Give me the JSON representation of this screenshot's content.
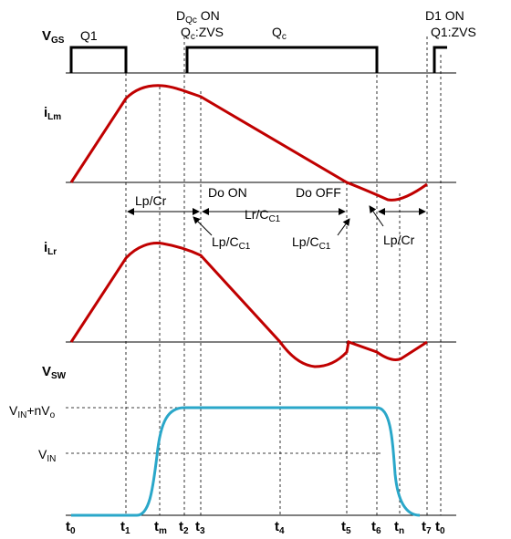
{
  "top": {
    "q1": "Q1",
    "dqc_on": {
      "main": "D",
      "sub": "Qc",
      "rest": " ON"
    },
    "qc_zvs": {
      "main": "Q",
      "sub": "c",
      "rest": ":ZVS"
    },
    "qc": {
      "main": "Q",
      "sub": "c"
    },
    "d1_on": "D1 ON",
    "q1_zvs": "Q1:ZVS"
  },
  "rows": [
    {
      "main": "V",
      "sub": "GS"
    },
    {
      "main": "i",
      "sub": "Lm"
    },
    {
      "main": "i",
      "sub": "Lr"
    },
    {
      "main": "V",
      "sub": "SW"
    }
  ],
  "levels": [
    {
      "main": "V",
      "sub": "IN",
      "rest": "+nV",
      "sub2": "o"
    },
    {
      "main": "V",
      "sub": "IN"
    }
  ],
  "intervals": {
    "lp_cr_1": "Lp/Cr",
    "do_on": "Do ON",
    "lr_cc1": {
      "main": "Lr/C",
      "sub": "C1"
    },
    "do_off": "Do OFF",
    "lp_cc1_1": {
      "main": "Lp/C",
      "sub": "C1"
    },
    "lp_cc1_2": {
      "main": "Lp/C",
      "sub": "C1"
    },
    "lp_cr_2": "Lp/Cr"
  },
  "times": [
    {
      "main": "t",
      "sub": "0"
    },
    {
      "main": "t",
      "sub": "1"
    },
    {
      "main": "t",
      "sub": "m"
    },
    {
      "main": "t",
      "sub": "2"
    },
    {
      "main": "t",
      "sub": "3"
    },
    {
      "main": "t",
      "sub": "4"
    },
    {
      "main": "t",
      "sub": "5"
    },
    {
      "main": "t",
      "sub": "6"
    },
    {
      "main": "t",
      "sub": "n"
    },
    {
      "main": "t",
      "sub": "7"
    },
    {
      "main": "t",
      "sub": "0"
    }
  ]
}
